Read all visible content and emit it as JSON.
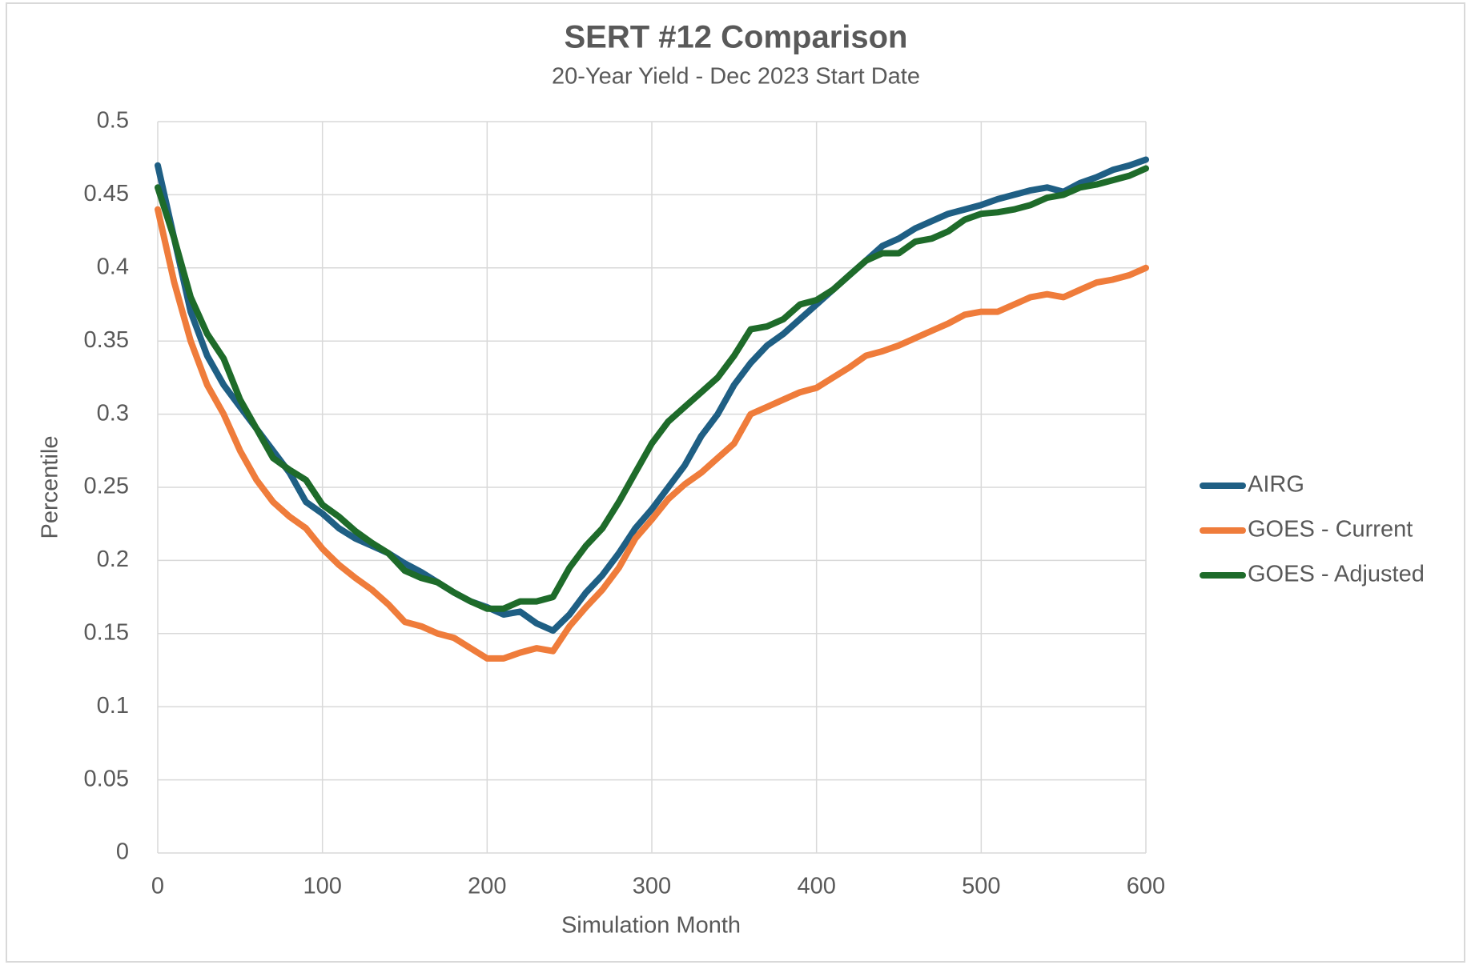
{
  "chart_data": {
    "type": "line",
    "title": "SERT #12 Comparison",
    "subtitle": "20-Year Yield - Dec 2023 Start Date",
    "x_label": "Simulation Month",
    "y_label": "Percentile",
    "x": [
      0,
      10,
      20,
      30,
      40,
      50,
      60,
      70,
      80,
      90,
      100,
      110,
      120,
      130,
      140,
      150,
      160,
      170,
      180,
      190,
      200,
      210,
      220,
      230,
      240,
      250,
      260,
      270,
      280,
      290,
      300,
      310,
      320,
      330,
      340,
      350,
      360,
      370,
      380,
      390,
      400,
      410,
      420,
      430,
      440,
      450,
      460,
      470,
      480,
      490,
      500,
      510,
      520,
      530,
      540,
      550,
      560,
      570,
      580,
      590,
      600
    ],
    "series": [
      {
        "name": "AIRG",
        "color": "#1f5f84",
        "values": [
          0.47,
          0.42,
          0.37,
          0.34,
          0.32,
          0.305,
          0.29,
          0.275,
          0.26,
          0.24,
          0.232,
          0.222,
          0.215,
          0.21,
          0.205,
          0.198,
          0.192,
          0.185,
          0.178,
          0.172,
          0.168,
          0.163,
          0.165,
          0.157,
          0.152,
          0.163,
          0.178,
          0.19,
          0.205,
          0.222,
          0.235,
          0.25,
          0.265,
          0.285,
          0.3,
          0.32,
          0.335,
          0.347,
          0.355,
          0.365,
          0.375,
          0.385,
          0.395,
          0.405,
          0.415,
          0.42,
          0.427,
          0.432,
          0.437,
          0.44,
          0.443,
          0.447,
          0.45,
          0.453,
          0.455,
          0.452,
          0.458,
          0.462,
          0.467,
          0.47,
          0.474
        ]
      },
      {
        "name": "GOES - Current",
        "color": "#ef7c3b",
        "values": [
          0.44,
          0.39,
          0.35,
          0.32,
          0.3,
          0.275,
          0.255,
          0.24,
          0.23,
          0.222,
          0.208,
          0.197,
          0.188,
          0.18,
          0.17,
          0.158,
          0.155,
          0.15,
          0.147,
          0.14,
          0.133,
          0.133,
          0.137,
          0.14,
          0.138,
          0.155,
          0.168,
          0.18,
          0.195,
          0.215,
          0.228,
          0.242,
          0.252,
          0.26,
          0.27,
          0.28,
          0.3,
          0.305,
          0.31,
          0.315,
          0.318,
          0.325,
          0.332,
          0.34,
          0.343,
          0.347,
          0.352,
          0.357,
          0.362,
          0.368,
          0.37,
          0.37,
          0.375,
          0.38,
          0.382,
          0.38,
          0.385,
          0.39,
          0.392,
          0.395,
          0.4
        ]
      },
      {
        "name": "GOES - Adjusted",
        "color": "#1e6b2a",
        "values": [
          0.455,
          0.42,
          0.38,
          0.355,
          0.338,
          0.31,
          0.29,
          0.27,
          0.262,
          0.255,
          0.238,
          0.23,
          0.22,
          0.212,
          0.205,
          0.193,
          0.188,
          0.185,
          0.178,
          0.172,
          0.167,
          0.167,
          0.172,
          0.172,
          0.175,
          0.195,
          0.21,
          0.222,
          0.24,
          0.26,
          0.28,
          0.295,
          0.305,
          0.315,
          0.325,
          0.34,
          0.358,
          0.36,
          0.365,
          0.375,
          0.378,
          0.385,
          0.395,
          0.405,
          0.41,
          0.41,
          0.418,
          0.42,
          0.425,
          0.433,
          0.437,
          0.438,
          0.44,
          0.443,
          0.448,
          0.45,
          0.455,
          0.457,
          0.46,
          0.463,
          0.468
        ]
      }
    ],
    "xlim": [
      0,
      600
    ],
    "xticks": [
      0,
      100,
      200,
      300,
      400,
      500,
      600
    ],
    "ylim": [
      0,
      0.5
    ],
    "yticks": [
      0,
      0.05,
      0.1,
      0.15,
      0.2,
      0.25,
      0.3,
      0.35,
      0.4,
      0.45,
      0.5
    ],
    "grid": true,
    "legend": "right"
  }
}
